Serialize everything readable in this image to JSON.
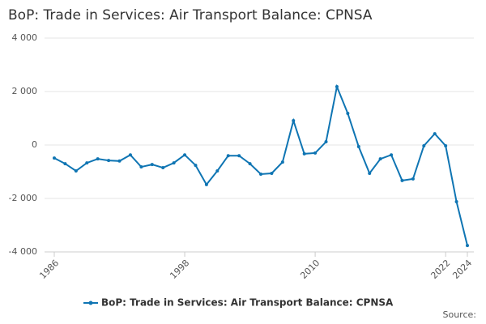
{
  "chart_data": {
    "type": "line",
    "title": "BoP: Trade in Services: Air Transport Balance: CPNSA",
    "x": [
      1986,
      1987,
      1988,
      1989,
      1990,
      1991,
      1992,
      1993,
      1994,
      1995,
      1996,
      1997,
      1998,
      1999,
      2000,
      2001,
      2002,
      2003,
      2004,
      2005,
      2006,
      2007,
      2008,
      2009,
      2010,
      2011,
      2012,
      2013,
      2014,
      2015,
      2016,
      2017,
      2018,
      2019,
      2020,
      2021,
      2022,
      2023,
      2024
    ],
    "series": [
      {
        "name": "BoP: Trade in Services: Air Transport Balance: CPNSA",
        "color": "#0f75b3",
        "values": [
          -490,
          -700,
          -970,
          -670,
          -520,
          -580,
          -600,
          -370,
          -820,
          -730,
          -850,
          -670,
          -370,
          -760,
          -1480,
          -970,
          -400,
          -400,
          -700,
          -1090,
          -1060,
          -640,
          910,
          -330,
          -300,
          120,
          2180,
          1180,
          -60,
          -1060,
          -520,
          -370,
          -1330,
          -1270,
          -30,
          420,
          -30,
          -2120,
          -3760
        ]
      }
    ],
    "xlim": [
      1986,
      2024
    ],
    "xticks": [
      1986,
      1998,
      2010,
      2022,
      2024
    ],
    "ylim": [
      -4000,
      4000
    ],
    "yticks": [
      {
        "value": -4000,
        "label": "-4 000"
      },
      {
        "value": -2000,
        "label": "-2 000"
      },
      0,
      {
        "value": 2000,
        "label": "2 000"
      },
      {
        "value": 4000,
        "label": "4 000"
      }
    ],
    "grid": true,
    "source": "Source:"
  }
}
